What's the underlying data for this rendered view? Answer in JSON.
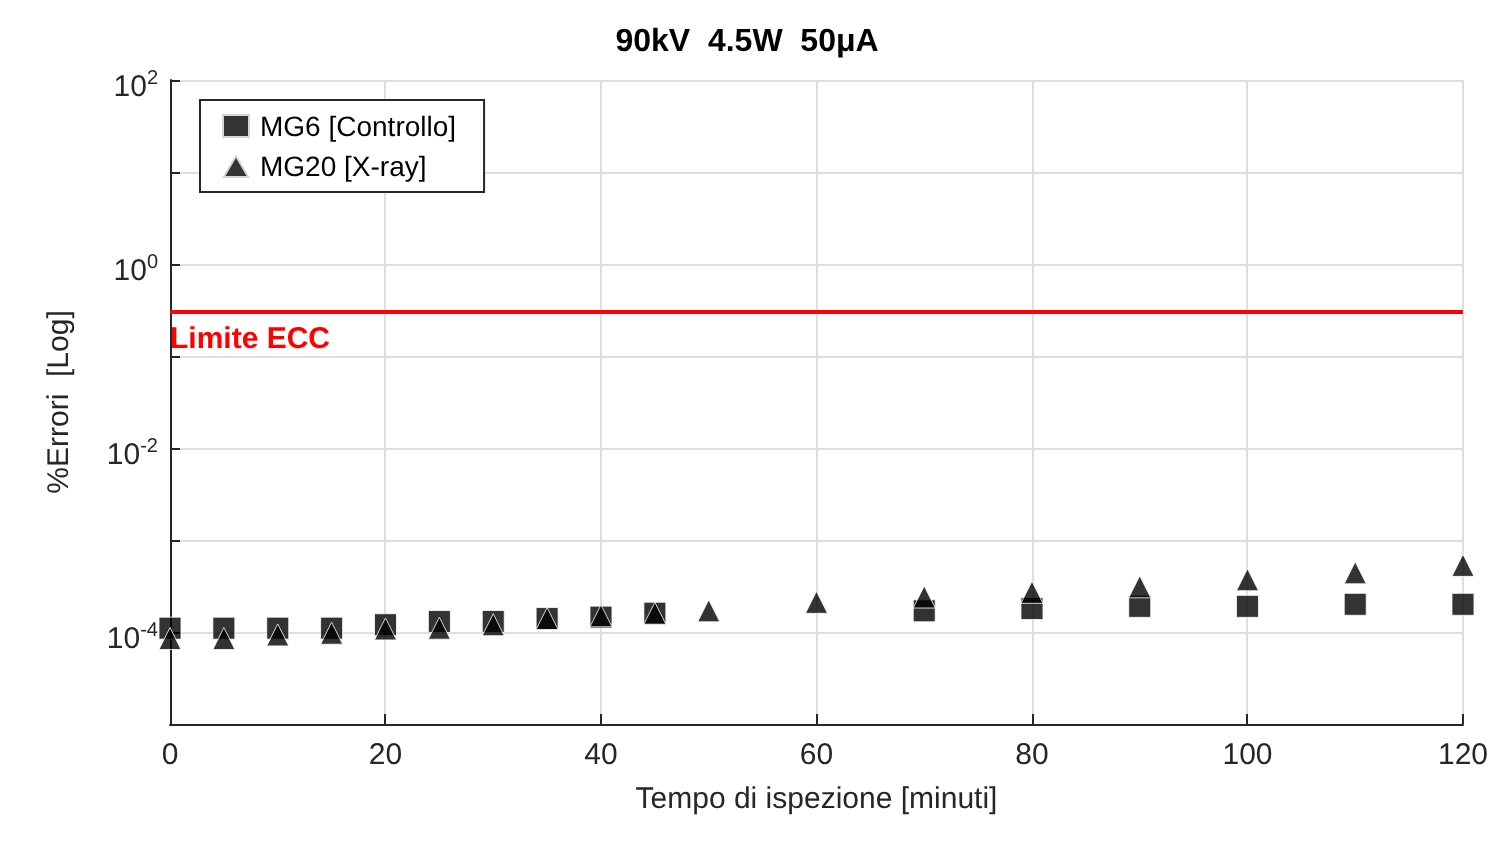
{
  "chart_data": {
    "type": "scatter",
    "title": "90kV  4.5W  50μA",
    "xlabel": "Tempo di ispezione [minuti]",
    "ylabel": "%Errori  [Log]",
    "x": [
      0,
      5,
      10,
      15,
      20,
      25,
      30,
      35,
      40,
      45,
      50,
      60,
      70,
      80,
      90,
      100,
      110,
      120
    ],
    "series": [
      {
        "name": "MG6 [Controllo]",
        "color": "#000000",
        "marker": "square",
        "values": [
          0.00011,
          0.00011,
          0.00011,
          0.00011,
          0.00012,
          0.00013,
          0.00013,
          0.00014,
          0.000145,
          0.00016,
          null,
          null,
          0.00017,
          0.00018,
          0.00019,
          0.00019,
          0.0002,
          0.0002
        ]
      },
      {
        "name": "MG20 [X-ray]",
        "color": "#000000",
        "marker": "triangle",
        "values": [
          8.5e-05,
          8.5e-05,
          9.3e-05,
          9.7e-05,
          0.000108,
          0.00011,
          0.00012,
          0.00014,
          0.00015,
          0.00016,
          0.00017,
          0.00021,
          0.00024,
          0.00027,
          0.00031,
          0.00037,
          0.00044,
          0.00053
        ]
      }
    ],
    "xlim": [
      0,
      120
    ],
    "xticks": [
      0,
      20,
      40,
      60,
      80,
      100,
      120
    ],
    "log": "y",
    "ylim": [
      1e-05,
      100
    ],
    "yticks": [
      {
        "value": 1e-05,
        "label": null
      },
      {
        "value": 0.0001,
        "label": "10$^{-4}$"
      },
      {
        "value": 0.001,
        "label": null
      },
      {
        "value": 0.01,
        "label": "10$^{-2}$"
      },
      {
        "value": 0.1,
        "label": null
      },
      {
        "value": 1,
        "label": "10$^{0}$"
      },
      {
        "value": 10,
        "label": null
      },
      {
        "value": 100,
        "label": "10$^{2}$"
      }
    ],
    "ref_lines": [
      {
        "axis": "y",
        "value": 0.3,
        "label": "Limite ECC",
        "color": "#ff0000"
      }
    ],
    "grid": true,
    "legend": "top left"
  }
}
